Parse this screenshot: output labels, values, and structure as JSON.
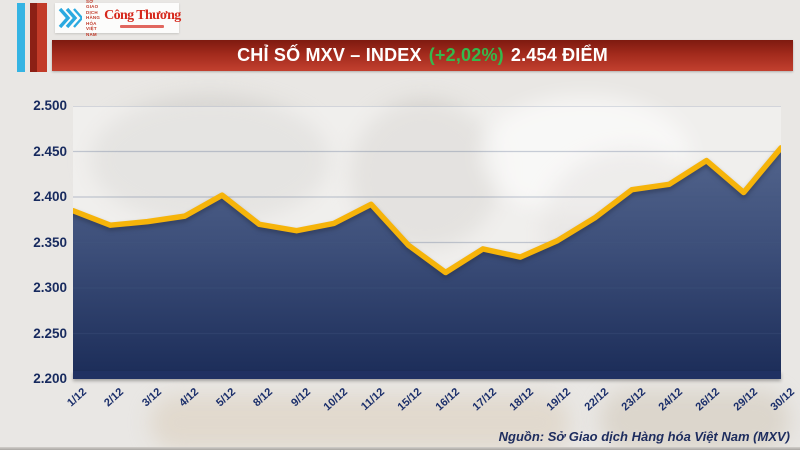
{
  "header": {
    "org_name_lines": [
      "SỞ GIAO DỊCH",
      "HÀNG HÓA",
      "VIỆT NAM"
    ],
    "newspaper_name": "Công Thương",
    "banner": {
      "title": "CHỈ SỐ MXV – INDEX",
      "change": "(+2,02%)",
      "value": "2.454 ĐIỂM",
      "bg_color": "#a22a1c",
      "change_color": "#35b94c"
    }
  },
  "chart_data": {
    "type": "area",
    "title": "CHỈ SỐ MXV – INDEX",
    "x": [
      "1/12",
      "2/12",
      "3/12",
      "4/12",
      "5/12",
      "8/12",
      "9/12",
      "10/12",
      "11/12",
      "15/12",
      "16/12",
      "17/12",
      "18/12",
      "19/12",
      "22/12",
      "23/12",
      "24/12",
      "26/12",
      "29/12",
      "30/12"
    ],
    "values": [
      2.385,
      2.369,
      2.373,
      2.379,
      2.402,
      2.37,
      2.363,
      2.371,
      2.392,
      2.347,
      2.317,
      2.343,
      2.334,
      2.352,
      2.377,
      2.408,
      2.414,
      2.44,
      2.405,
      2.454
    ],
    "ylim": [
      2.2,
      2.5
    ],
    "ytick_step": 0.05,
    "ytick_labels": [
      "2.500",
      "2.450",
      "2.400",
      "2.350",
      "2.300",
      "2.250",
      "2.200"
    ],
    "grid": true,
    "legend_position": "none",
    "line_color": "#f6b40a",
    "fill_top_color": "#52648c",
    "fill_bottom_color": "#1b2c58",
    "axis_bar_color": "#203162",
    "label_color": "#172a5e"
  },
  "footer": {
    "source": "Nguồn: Sở Giao dịch Hàng hóa Việt Nam (MXV)"
  }
}
